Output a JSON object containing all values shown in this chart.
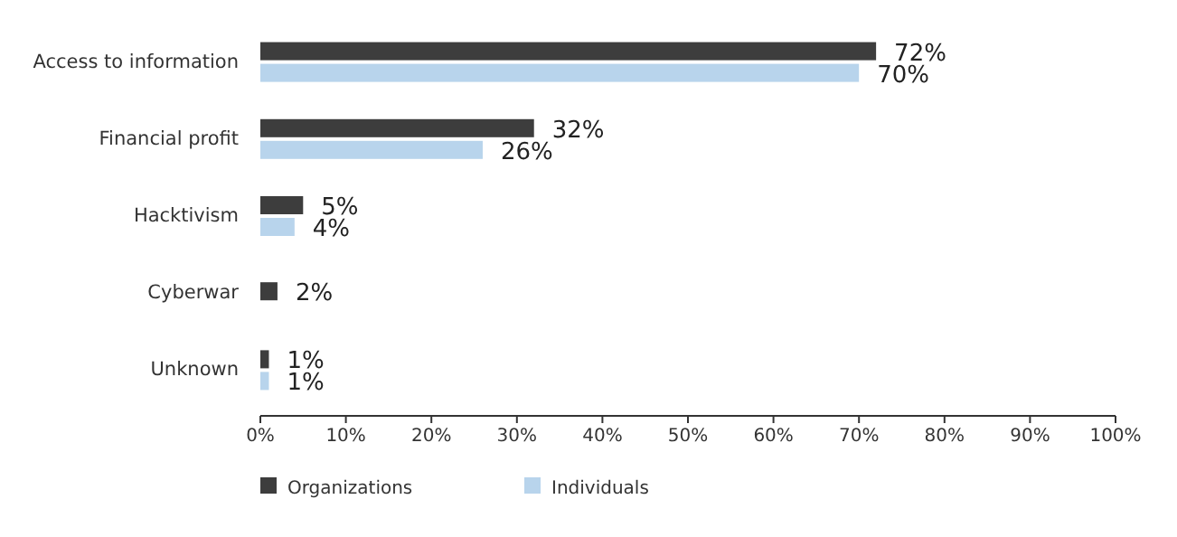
{
  "chart_data": {
    "type": "bar",
    "orientation": "horizontal",
    "categories": [
      "Access to information",
      "Financial profit",
      "Hacktivism",
      "Cyberwar",
      "Unknown"
    ],
    "series": [
      {
        "name": "Organizations",
        "color": "#3d3d3d",
        "values": [
          72,
          32,
          5,
          2,
          1
        ],
        "value_labels": [
          "72%",
          "32%",
          "5%",
          "2%",
          "1%"
        ]
      },
      {
        "name": "Individuals",
        "color": "#b8d4ec",
        "values": [
          70,
          26,
          4,
          null,
          1
        ],
        "value_labels": [
          "70%",
          "26%",
          "4%",
          null,
          "1%"
        ]
      }
    ],
    "xlim": [
      0,
      100
    ],
    "xticks": [
      {
        "value": 0,
        "label": "0%"
      },
      {
        "value": 10,
        "label": "10%"
      },
      {
        "value": 20,
        "label": "20%"
      },
      {
        "value": 30,
        "label": "30%"
      },
      {
        "value": 40,
        "label": "40%"
      },
      {
        "value": 50,
        "label": "50%"
      },
      {
        "value": 60,
        "label": "60%"
      },
      {
        "value": 70,
        "label": "70%"
      },
      {
        "value": 80,
        "label": "80%"
      },
      {
        "value": 90,
        "label": "90%"
      },
      {
        "value": 100,
        "label": "100%"
      }
    ],
    "grid": false,
    "legend": "bottom"
  }
}
